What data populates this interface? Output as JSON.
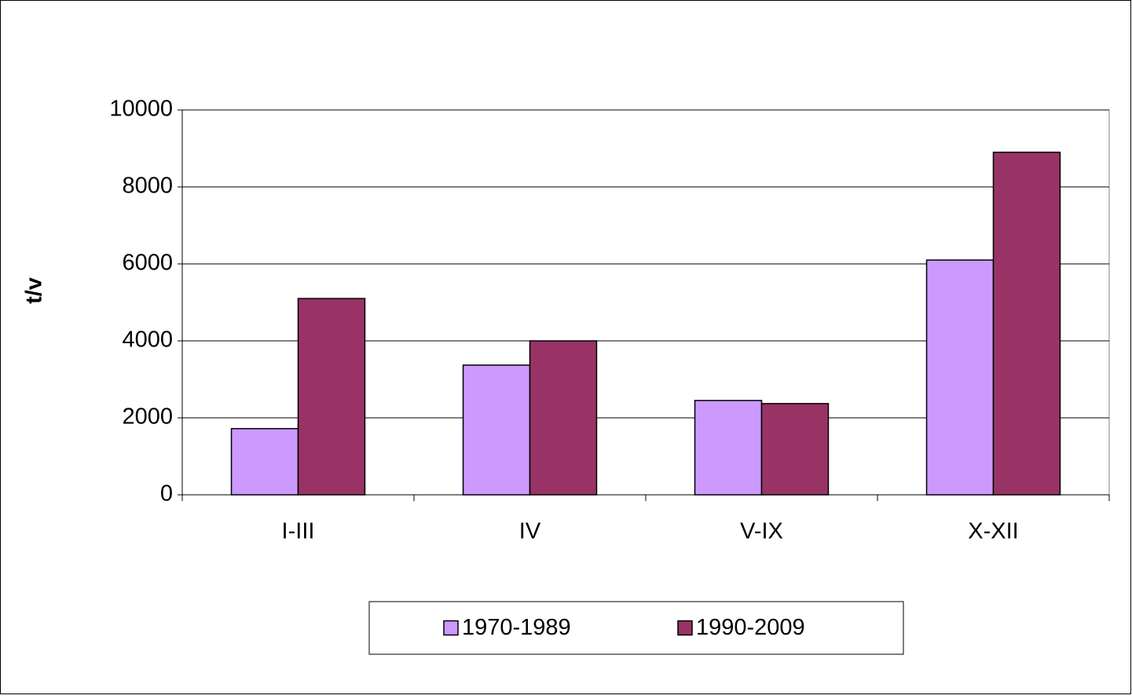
{
  "chart_data": {
    "type": "bar",
    "y_label": "t/v",
    "categories": [
      "I-III",
      "IV",
      "V-IX",
      "X-XII"
    ],
    "series": [
      {
        "name": "1970-1989",
        "color": "#cc99ff",
        "values": [
          1720,
          3370,
          2450,
          6100
        ]
      },
      {
        "name": "1990-2009",
        "color": "#993366",
        "values": [
          5100,
          4000,
          2370,
          8900
        ]
      }
    ],
    "ylim": [
      0,
      10000
    ],
    "yticks": [
      0,
      2000,
      4000,
      6000,
      8000,
      10000
    ],
    "grid": true,
    "legend": "bottom"
  }
}
